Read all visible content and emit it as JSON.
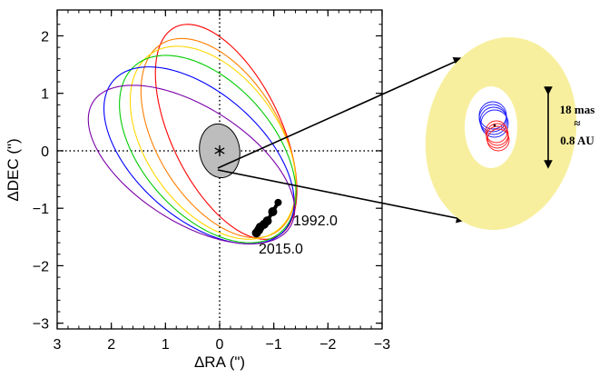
{
  "chart_data": {
    "type": "scatter",
    "xlabel": "ΔRA (\")",
    "ylabel": "ΔDEC (\")",
    "xlim": [
      3,
      -3
    ],
    "ylim": [
      -3.1,
      2.45
    ],
    "xticks": [
      3,
      2,
      1,
      0,
      -1,
      -2,
      -3
    ],
    "xtick_labels": [
      "3",
      "2",
      "1",
      "0",
      "−1",
      "−2",
      "−3"
    ],
    "yticks": [
      -3,
      -2,
      -1,
      0,
      1,
      2
    ],
    "ytick_labels": [
      "−3",
      "−2",
      "−1",
      "0",
      "1",
      "2"
    ],
    "reference_lines": {
      "x": 0,
      "y": 0,
      "style": "dotted"
    },
    "central_star": {
      "x": 0,
      "y": 0,
      "marker": "asterisk"
    },
    "error_ellipse": {
      "cx": 0,
      "cy": 0,
      "rx": 0.37,
      "ry": 0.47,
      "angle_deg": -10,
      "color": "#bdbdbd"
    },
    "orbit_colors": [
      "#ff0000",
      "#ff7f00",
      "#ffd800",
      "#00cc00",
      "#0000ff",
      "#7a00a8"
    ],
    "orbits": [
      {
        "color": "#ff0000",
        "cx": -0.12,
        "cy": 0.33,
        "a": 2.05,
        "b": 1.0,
        "angle_deg": 62
      },
      {
        "color": "#ff7f00",
        "cx": 0.02,
        "cy": 0.22,
        "a": 1.95,
        "b": 1.12,
        "angle_deg": 56
      },
      {
        "color": "#ffd800",
        "cx": 0.12,
        "cy": 0.14,
        "a": 1.93,
        "b": 1.2,
        "angle_deg": 51
      },
      {
        "color": "#00cc00",
        "cx": 0.22,
        "cy": 0.03,
        "a": 1.98,
        "b": 1.18,
        "angle_deg": 45
      },
      {
        "color": "#0000ff",
        "cx": 0.38,
        "cy": -0.08,
        "a": 2.05,
        "b": 1.12,
        "angle_deg": 38
      },
      {
        "color": "#7a00a8",
        "cx": 0.52,
        "cy": -0.24,
        "a": 2.12,
        "b": 1.02,
        "angle_deg": 30
      }
    ],
    "observations": [
      {
        "x": -1.08,
        "y": -0.9
      },
      {
        "x": -0.98,
        "y": -1.06
      },
      {
        "x": -0.88,
        "y": -1.22
      },
      {
        "x": -0.82,
        "y": -1.28
      },
      {
        "x": -0.75,
        "y": -1.33
      },
      {
        "x": -0.72,
        "y": -1.38
      },
      {
        "x": -0.68,
        "y": -1.43
      }
    ],
    "annotations": [
      {
        "text": "1992.0",
        "x": -1.42,
        "y": -0.98
      },
      {
        "text": "2015.0",
        "x": -0.75,
        "y": -1.55
      }
    ],
    "inset": {
      "ring_color": "#f8ef9e",
      "label_lines": [
        "18 mas",
        "≈",
        "0.8 AU"
      ]
    }
  }
}
